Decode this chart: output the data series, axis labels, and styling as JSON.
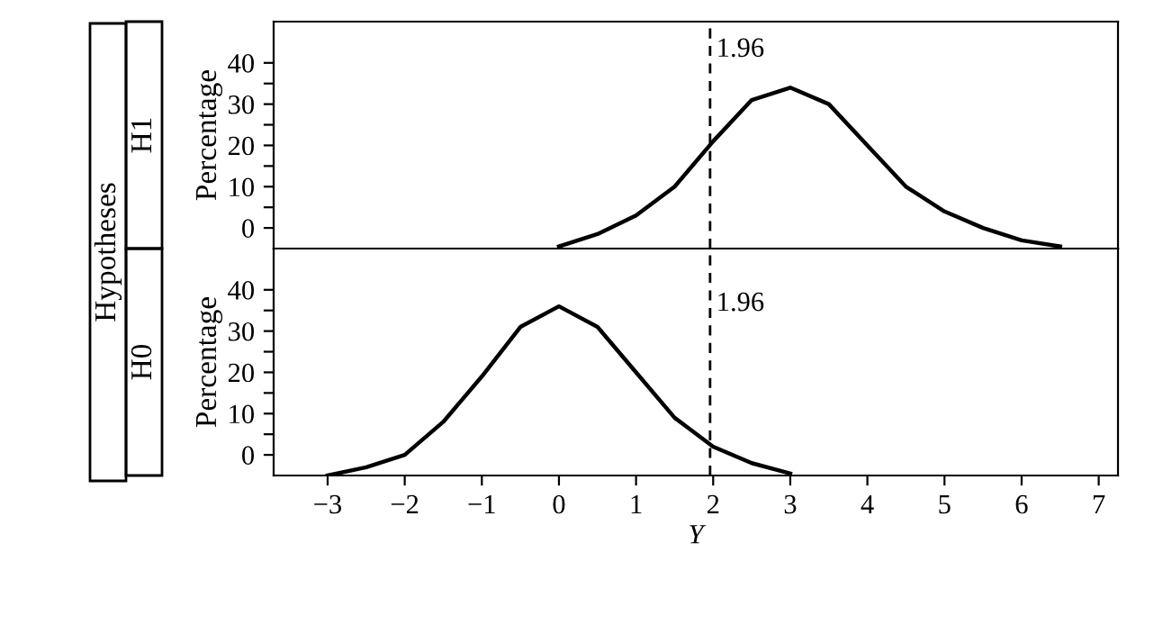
{
  "chart_data": [
    {
      "type": "line",
      "ylabel": "Percentage",
      "annotations": [
        "Hypotheses",
        "H1"
      ],
      "tick_labels": "y",
      "x": [
        0,
        0.5,
        1,
        1.5,
        2,
        2.5,
        3,
        3.5,
        4,
        4.5,
        5,
        5.5,
        6,
        6.5
      ],
      "series": [
        {
          "color": "#000000",
          "values": [
            -4.5,
            -1.5,
            3,
            10,
            21,
            31,
            34,
            30,
            20,
            10,
            4,
            0,
            -3,
            -4.5
          ]
        }
      ],
      "xlim": [
        -3.7,
        7.25
      ],
      "ylim": [
        -5,
        50
      ],
      "xticks": [
        {
          "value": -3,
          "label": null
        },
        {
          "value": -2,
          "label": null
        },
        {
          "value": -1,
          "label": null
        },
        {
          "value": 0,
          "label": null
        },
        {
          "value": 1,
          "label": null
        },
        {
          "value": 2,
          "label": null
        },
        {
          "value": 3,
          "label": null
        },
        {
          "value": 4,
          "label": null
        },
        {
          "value": 5,
          "label": null
        },
        {
          "value": 6,
          "label": null
        },
        {
          "value": 7,
          "label": null
        }
      ],
      "yticks": [
        0,
        {
          "value": 5,
          "label": null
        },
        10,
        {
          "value": 15,
          "label": null
        },
        20,
        {
          "value": 25,
          "label": null
        },
        30,
        {
          "value": 35,
          "label": null
        },
        40
      ],
      "ref_lines": [
        {
          "axis": "x",
          "value": 1.96,
          "label": "1.96",
          "color": "#000000",
          "line_style": "dashed"
        }
      ],
      "grid": false,
      "legend": false,
      "marker": "none",
      "line_style": "solid"
    },
    {
      "type": "line",
      "ylabel": "Percentage",
      "xlabel": "Y",
      "annotations": [
        "H0"
      ],
      "x": [
        -3,
        -2.5,
        -2,
        -1.5,
        -1,
        -0.5,
        0,
        0.5,
        1,
        1.5,
        2,
        2.5,
        3
      ],
      "series": [
        {
          "color": "#000000",
          "values": [
            -5,
            -3,
            0,
            8,
            19,
            31,
            36,
            31,
            20,
            9,
            2,
            -2,
            -4.5
          ]
        }
      ],
      "xlim": [
        -3.7,
        7.25
      ],
      "ylim": [
        -5,
        50
      ],
      "xticks": [
        {
          "value": -3,
          "label": "−3"
        },
        {
          "value": -2,
          "label": "−2"
        },
        {
          "value": -1,
          "label": "−1"
        },
        0,
        1,
        2,
        3,
        4,
        5,
        6,
        7
      ],
      "yticks": [
        0,
        {
          "value": 5,
          "label": null
        },
        10,
        {
          "value": 15,
          "label": null
        },
        20,
        {
          "value": 25,
          "label": null
        },
        30,
        {
          "value": 35,
          "label": null
        },
        40
      ],
      "ref_lines": [
        {
          "axis": "x",
          "value": 1.96,
          "label": "1.96",
          "color": "#000000",
          "line_style": "dashed"
        }
      ],
      "grid": false,
      "legend": false,
      "marker": "none",
      "line_style": "solid"
    }
  ]
}
